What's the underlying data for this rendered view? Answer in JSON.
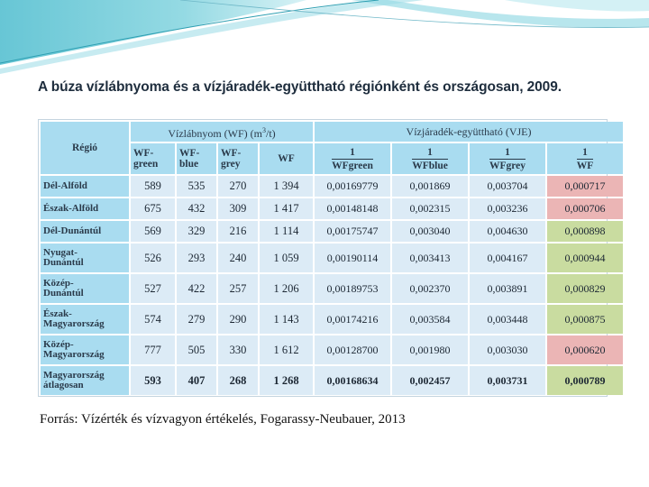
{
  "title": "A búza vízlábnyoma és a vízjáradék-együttható régiónként és országosan, 2009.",
  "table": {
    "region_header": "Régió",
    "group_wf": {
      "prefix": "Vízlábnyom (WF) (m",
      "sup": "3",
      "suffix": "/t)"
    },
    "group_vje": "Vízjáradék-együttható (VJE)",
    "wf_columns": [
      {
        "l1": "WF-",
        "l2": "green"
      },
      {
        "l1": "WF-",
        "l2": "blue"
      },
      {
        "l1": "WF-",
        "l2": "grey"
      }
    ],
    "wf_total_header": "WF",
    "vje_columns": [
      {
        "num": "1",
        "den": "WFgreen"
      },
      {
        "num": "1",
        "den": "WFblue"
      },
      {
        "num": "1",
        "den": "WFgrey"
      },
      {
        "num": "1",
        "den": "WF"
      }
    ],
    "rows": [
      {
        "region_l1": "Dél-Alföld",
        "region_l2": "",
        "green": "589",
        "blue": "535",
        "grey": "270",
        "wf": "1 394",
        "vje_green": "0,00169779",
        "vje_blue": "0,001869",
        "vje_grey": "0,003704",
        "vje_wf": "0,000717",
        "highlight": "red"
      },
      {
        "region_l1": "Észak-Alföld",
        "region_l2": "",
        "green": "675",
        "blue": "432",
        "grey": "309",
        "wf": "1 417",
        "vje_green": "0,00148148",
        "vje_blue": "0,002315",
        "vje_grey": "0,003236",
        "vje_wf": "0,000706",
        "highlight": "red"
      },
      {
        "region_l1": "Dél-Dunántúl",
        "region_l2": "",
        "green": "569",
        "blue": "329",
        "grey": "216",
        "wf": "1 114",
        "vje_green": "0,00175747",
        "vje_blue": "0,003040",
        "vje_grey": "0,004630",
        "vje_wf": "0,000898",
        "highlight": "green"
      },
      {
        "region_l1": "Nyugat-",
        "region_l2": "Dunántúl",
        "green": "526",
        "blue": "293",
        "grey": "240",
        "wf": "1 059",
        "vje_green": "0,00190114",
        "vje_blue": "0,003413",
        "vje_grey": "0,004167",
        "vje_wf": "0,000944",
        "highlight": "green"
      },
      {
        "region_l1": "Közép-",
        "region_l2": "Dunántúl",
        "green": "527",
        "blue": "422",
        "grey": "257",
        "wf": "1 206",
        "vje_green": "0,00189753",
        "vje_blue": "0,002370",
        "vje_grey": "0,003891",
        "vje_wf": "0,000829",
        "highlight": "green"
      },
      {
        "region_l1": "Észak-",
        "region_l2": "Magyarország",
        "green": "574",
        "blue": "279",
        "grey": "290",
        "wf": "1 143",
        "vje_green": "0,00174216",
        "vje_blue": "0,003584",
        "vje_grey": "0,003448",
        "vje_wf": "0,000875",
        "highlight": "green"
      },
      {
        "region_l1": "Közép-",
        "region_l2": "Magyarország",
        "green": "777",
        "blue": "505",
        "grey": "330",
        "wf": "1 612",
        "vje_green": "0,00128700",
        "vje_blue": "0,001980",
        "vje_grey": "0,003030",
        "vje_wf": "0,000620",
        "highlight": "red"
      },
      {
        "region_l1": "Magyarország",
        "region_l2": "átlagosan",
        "green": "593",
        "blue": "407",
        "grey": "268",
        "wf": "1 268",
        "vje_green": "0,00168634",
        "vje_blue": "0,002457",
        "vje_grey": "0,003731",
        "vje_wf": "0,000789",
        "highlight": "green"
      }
    ]
  },
  "source": "Forrás: Vízérték és vízvagyon értékelés, Fogarassy-Neubauer, 2013",
  "colors": {
    "header_bg": "#a9dcf0",
    "cell_bg": "#dcebf6",
    "highlight_green": "#c9dca0",
    "highlight_red": "#ebb5b5",
    "decor_teal": "#5fc3d3"
  }
}
